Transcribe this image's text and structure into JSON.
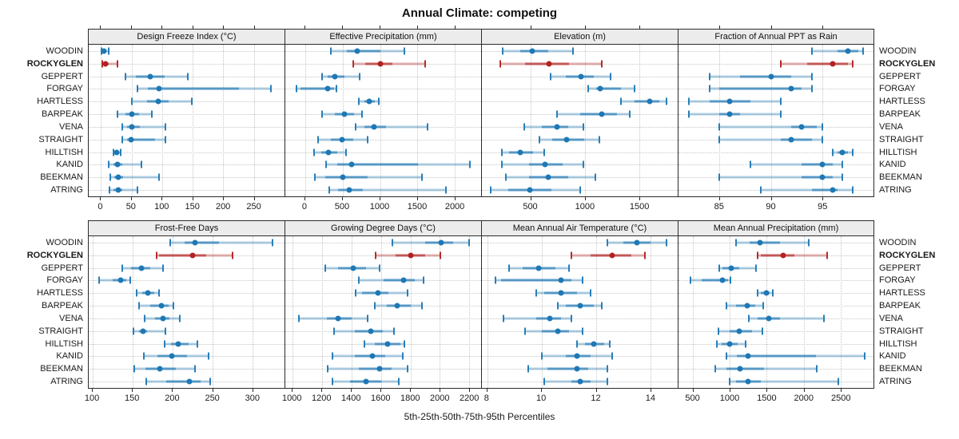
{
  "title": "Annual Climate: competing",
  "caption": "5th-25th-50th-75th-95th Percentiles",
  "highlight_site": "ROCKYGLEN",
  "colors": {
    "series_blue": "#1f78b4",
    "series_red": "#b22222",
    "strip_bg": "#ececec",
    "grid": "#c6c6c6",
    "border": "#2b2b2b"
  },
  "chart_data": {
    "type": "dotplot-percentiles",
    "layout": "2 rows x 4 columns trellis, shared site y-axis, free x scales",
    "percentiles": [
      "5th",
      "25th",
      "50th",
      "75th",
      "95th"
    ],
    "legend_position": "none",
    "grid": "dotted",
    "sites": [
      "WOODIN",
      "ROCKYGLEN",
      "GEPPERT",
      "FORGAY",
      "HARTLESS",
      "BARPEAK",
      "VENA",
      "STRAIGHT",
      "HILLTISH",
      "KANID",
      "BEEKMAN",
      "ATRING"
    ],
    "panels": [
      {
        "label": "Design Freeze Index (°C)",
        "xlim": [
          -20,
          300
        ],
        "ticks": [
          0,
          50,
          100,
          150,
          200,
          250
        ],
        "values": [
          [
            1,
            3,
            5,
            9,
            13
          ],
          [
            2,
            4,
            8,
            13,
            27
          ],
          [
            40,
            57,
            80,
            104,
            142
          ],
          [
            60,
            76,
            95,
            225,
            278
          ],
          [
            50,
            75,
            93,
            110,
            148
          ],
          [
            27,
            40,
            50,
            62,
            83
          ],
          [
            35,
            43,
            51,
            63,
            105
          ],
          [
            35,
            43,
            49,
            88,
            106
          ],
          [
            21,
            24,
            26,
            29,
            32
          ],
          [
            13,
            20,
            27,
            35,
            66
          ],
          [
            15,
            22,
            28,
            36,
            95
          ],
          [
            14,
            20,
            28,
            35,
            60
          ]
        ]
      },
      {
        "label": "Effective Precipitation (mm)",
        "xlim": [
          -265,
          2350
        ],
        "ticks": [
          0,
          500,
          1000,
          1500,
          2000
        ],
        "values": [
          [
            340,
            560,
            700,
            1000,
            1330
          ],
          [
            640,
            800,
            1010,
            1170,
            1600
          ],
          [
            230,
            300,
            400,
            530,
            730
          ],
          [
            -115,
            -60,
            300,
            390,
            420
          ],
          [
            720,
            790,
            860,
            930,
            980
          ],
          [
            230,
            400,
            530,
            650,
            760
          ],
          [
            670,
            790,
            920,
            1080,
            1640
          ],
          [
            170,
            340,
            490,
            640,
            830
          ],
          [
            120,
            210,
            310,
            430,
            550
          ],
          [
            280,
            430,
            620,
            1510,
            2200
          ],
          [
            130,
            270,
            500,
            830,
            1560
          ],
          [
            320,
            440,
            590,
            770,
            1880
          ]
        ]
      },
      {
        "label": "Elevation (m)",
        "xlim": [
          50,
          1850
        ],
        "ticks": [
          500,
          1000,
          1500
        ],
        "values": [
          [
            240,
            400,
            510,
            660,
            890
          ],
          [
            220,
            450,
            670,
            850,
            1150
          ],
          [
            680,
            820,
            960,
            1080,
            1230
          ],
          [
            1030,
            1100,
            1140,
            1330,
            1450
          ],
          [
            1330,
            1450,
            1590,
            1680,
            1750
          ],
          [
            740,
            950,
            1150,
            1290,
            1410
          ],
          [
            440,
            600,
            740,
            840,
            980
          ],
          [
            580,
            700,
            830,
            990,
            1130
          ],
          [
            230,
            300,
            400,
            520,
            620
          ],
          [
            230,
            480,
            630,
            790,
            980
          ],
          [
            270,
            480,
            660,
            840,
            1090
          ],
          [
            130,
            290,
            490,
            690,
            950
          ]
        ]
      },
      {
        "label": "Fraction of Annual PPT as Rain",
        "xlim": [
          81,
          100
        ],
        "ticks": [
          85,
          90,
          95
        ],
        "values": [
          [
            94,
            96.5,
            97.5,
            98.5,
            99
          ],
          [
            91,
            93.5,
            96,
            97.5,
            98
          ],
          [
            84,
            87,
            90,
            92,
            94
          ],
          [
            84,
            85,
            92,
            93,
            94
          ],
          [
            82,
            84,
            86,
            88,
            91
          ],
          [
            82,
            85,
            86,
            87,
            91
          ],
          [
            85,
            92,
            93,
            94.5,
            95
          ],
          [
            85,
            91,
            92,
            94,
            95
          ],
          [
            96,
            96.5,
            97,
            97.5,
            98
          ],
          [
            88,
            93,
            95,
            96,
            97
          ],
          [
            85,
            93,
            95,
            96,
            97
          ],
          [
            89,
            94,
            96,
            96.5,
            98
          ]
        ]
      },
      {
        "label": "Frost-Free Days",
        "xlim": [
          95,
          340
        ],
        "ticks": [
          100,
          150,
          200,
          250,
          300
        ],
        "values": [
          [
            197,
            215,
            228,
            258,
            325
          ],
          [
            180,
            183,
            225,
            242,
            275
          ],
          [
            137,
            148,
            161,
            172,
            188
          ],
          [
            108,
            125,
            135,
            142,
            147
          ],
          [
            155,
            162,
            169,
            177,
            183
          ],
          [
            158,
            172,
            186,
            195,
            201
          ],
          [
            165,
            178,
            188,
            196,
            209
          ],
          [
            151,
            158,
            163,
            168,
            191
          ],
          [
            190,
            198,
            207,
            220,
            231
          ],
          [
            164,
            181,
            199,
            218,
            245
          ],
          [
            152,
            166,
            184,
            204,
            228
          ],
          [
            167,
            192,
            221,
            235,
            247
          ]
        ]
      },
      {
        "label": "Growing Degree Days (°C)",
        "xlim": [
          950,
          2280
        ],
        "ticks": [
          1000,
          1200,
          1400,
          1600,
          1800,
          2000,
          2200
        ],
        "values": [
          [
            1680,
            1900,
            2010,
            2090,
            2200
          ],
          [
            1565,
            1700,
            1800,
            1900,
            2005
          ],
          [
            1220,
            1310,
            1410,
            1500,
            1590
          ],
          [
            1450,
            1620,
            1755,
            1830,
            1890
          ],
          [
            1430,
            1470,
            1580,
            1650,
            1780
          ],
          [
            1560,
            1640,
            1710,
            1800,
            1880
          ],
          [
            1040,
            1230,
            1310,
            1400,
            1510
          ],
          [
            1280,
            1420,
            1530,
            1610,
            1690
          ],
          [
            1490,
            1560,
            1645,
            1730,
            1760
          ],
          [
            1270,
            1420,
            1540,
            1630,
            1750
          ],
          [
            1240,
            1450,
            1590,
            1670,
            1780
          ],
          [
            1270,
            1390,
            1500,
            1600,
            1720
          ]
        ]
      },
      {
        "label": "Mean Annual Air Temperature (°C)",
        "xlim": [
          7.8,
          15
        ],
        "ticks": [
          8,
          10,
          12,
          14
        ],
        "values": [
          [
            12.4,
            13,
            13.5,
            14,
            14.6
          ],
          [
            11.1,
            11.8,
            12.6,
            13.3,
            13.8
          ],
          [
            8.8,
            9.3,
            9.9,
            10.5,
            11
          ],
          [
            8.3,
            8.5,
            10.7,
            11.1,
            11.5
          ],
          [
            9.8,
            10.1,
            10.7,
            11.3,
            11.8
          ],
          [
            10.6,
            10.9,
            11.4,
            11.9,
            12.2
          ],
          [
            8.6,
            9.8,
            10.3,
            10.7,
            11.1
          ],
          [
            9.4,
            10,
            10.6,
            11,
            11.5
          ],
          [
            11.3,
            11.6,
            11.9,
            12.3,
            12.5
          ],
          [
            10,
            10.9,
            11.3,
            11.8,
            12.6
          ],
          [
            9.5,
            10.2,
            11.3,
            11.7,
            12.4
          ],
          [
            10.1,
            11.1,
            11.4,
            11.8,
            12.4
          ]
        ]
      },
      {
        "label": "Mean Annual Precipitation (mm)",
        "xlim": [
          300,
          2950
        ],
        "ticks": [
          500,
          1000,
          1500,
          2000,
          2500
        ],
        "values": [
          [
            1080,
            1270,
            1410,
            1680,
            2070
          ],
          [
            1380,
            1420,
            1720,
            1880,
            2320
          ],
          [
            850,
            900,
            1020,
            1130,
            1350
          ],
          [
            460,
            620,
            900,
            970,
            1010
          ],
          [
            1380,
            1420,
            1500,
            1540,
            1580
          ],
          [
            950,
            1080,
            1230,
            1340,
            1450
          ],
          [
            1260,
            1380,
            1530,
            1680,
            2280
          ],
          [
            840,
            990,
            1120,
            1300,
            1440
          ],
          [
            820,
            890,
            990,
            1100,
            1210
          ],
          [
            950,
            1090,
            1250,
            2170,
            2830
          ],
          [
            800,
            950,
            1140,
            1460,
            2180
          ],
          [
            1000,
            1080,
            1250,
            1420,
            2470
          ]
        ]
      }
    ]
  }
}
